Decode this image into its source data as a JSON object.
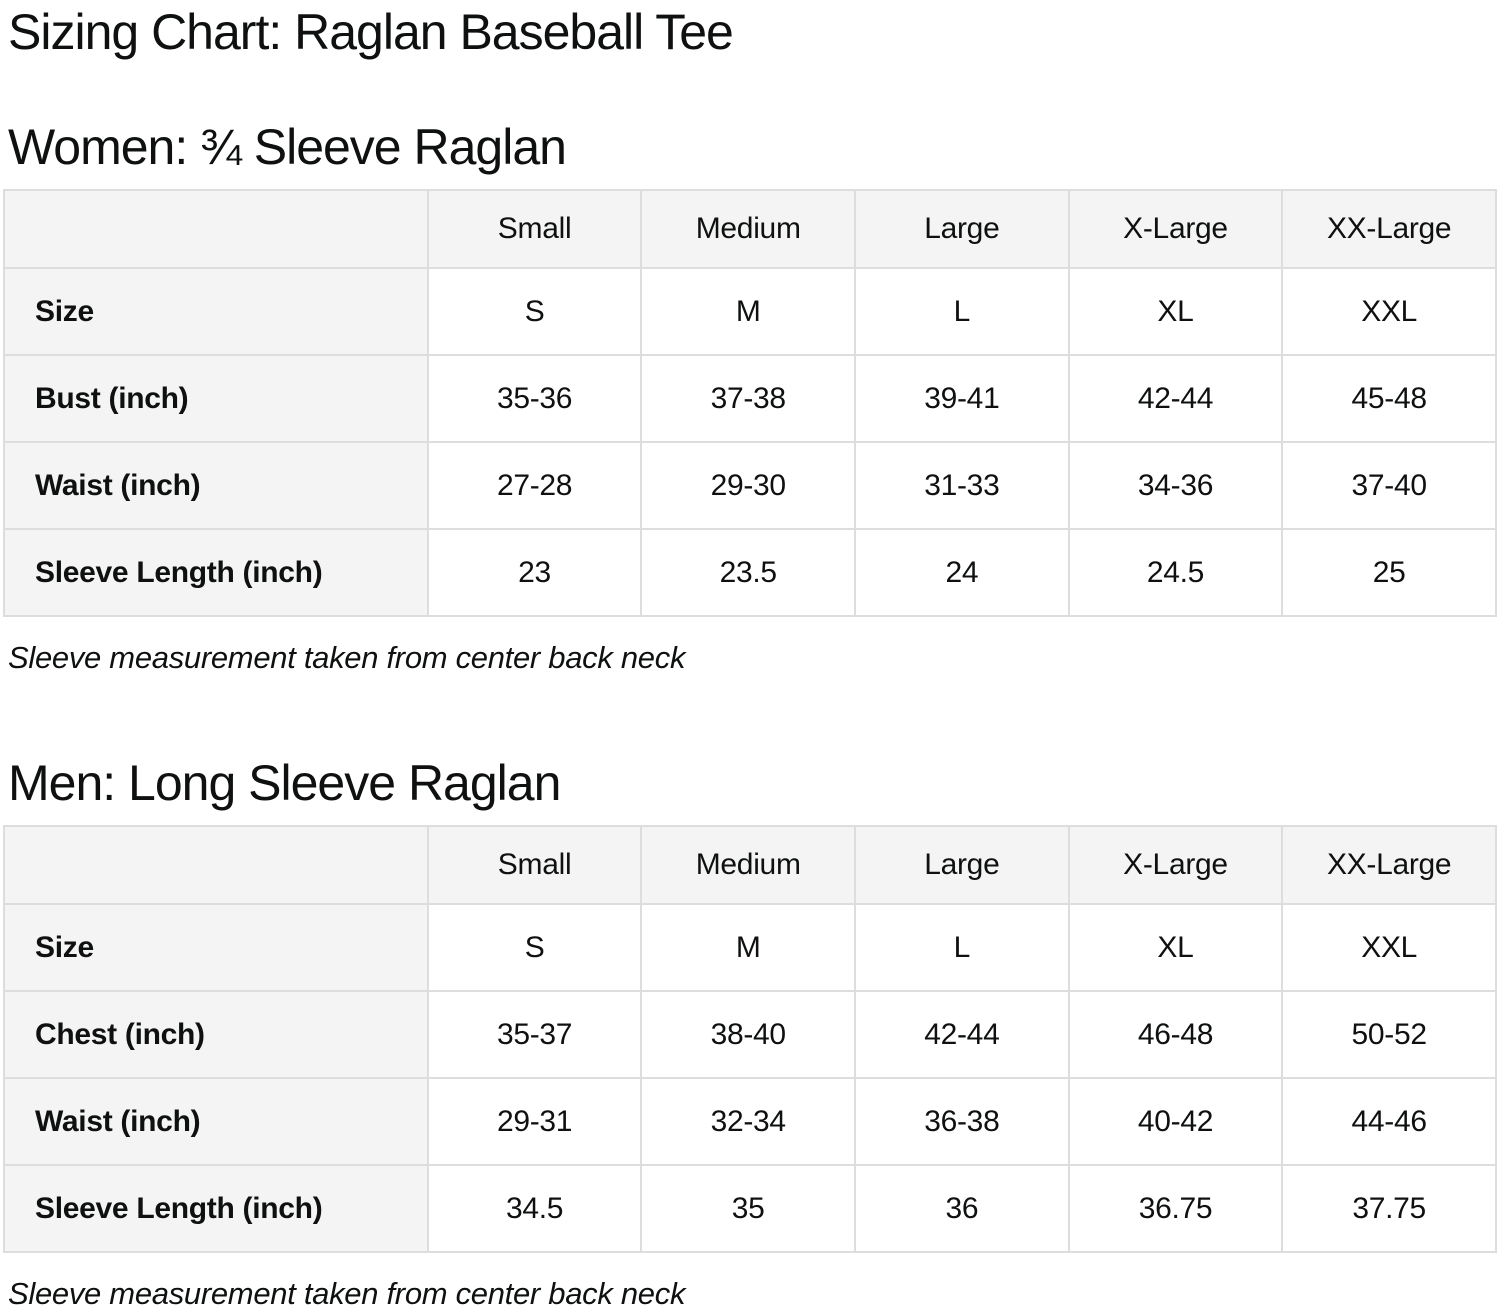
{
  "title": "Sizing Chart: Raglan Baseball Tee",
  "colors": {
    "header_cell_bg": "#f4f4f4",
    "table_border": "#dddddd",
    "text": "#0f1111",
    "page_bg": "#ffffff"
  },
  "sections": [
    {
      "heading": "Women: ¾ Sleeve Raglan",
      "note": "Sleeve measurement taken from center back neck",
      "table": {
        "columns": [
          "",
          "Small",
          "Medium",
          "Large",
          "X-Large",
          "XX-Large"
        ],
        "rows": [
          {
            "label": "Size",
            "values": [
              "S",
              "M",
              "L",
              "XL",
              "XXL"
            ]
          },
          {
            "label": "Bust (inch)",
            "values": [
              "35-36",
              "37-38",
              "39-41",
              "42-44",
              "45-48"
            ]
          },
          {
            "label": "Waist (inch)",
            "values": [
              "27-28",
              "29-30",
              "31-33",
              "34-36",
              "37-40"
            ]
          },
          {
            "label": "Sleeve Length (inch)",
            "values": [
              "23",
              "23.5",
              "24",
              "24.5",
              "25"
            ]
          }
        ]
      }
    },
    {
      "heading": "Men: Long Sleeve Raglan",
      "note": "Sleeve measurement taken from center back neck",
      "table": {
        "columns": [
          "",
          "Small",
          "Medium",
          "Large",
          "X-Large",
          "XX-Large"
        ],
        "rows": [
          {
            "label": "Size",
            "values": [
              "S",
              "M",
              "L",
              "XL",
              "XXL"
            ]
          },
          {
            "label": "Chest (inch)",
            "values": [
              "35-37",
              "38-40",
              "42-44",
              "46-48",
              "50-52"
            ]
          },
          {
            "label": "Waist (inch)",
            "values": [
              "29-31",
              "32-34",
              "36-38",
              "40-42",
              "44-46"
            ]
          },
          {
            "label": "Sleeve Length (inch)",
            "values": [
              "34.5",
              "35",
              "36",
              "36.75",
              "37.75"
            ]
          }
        ]
      }
    }
  ]
}
